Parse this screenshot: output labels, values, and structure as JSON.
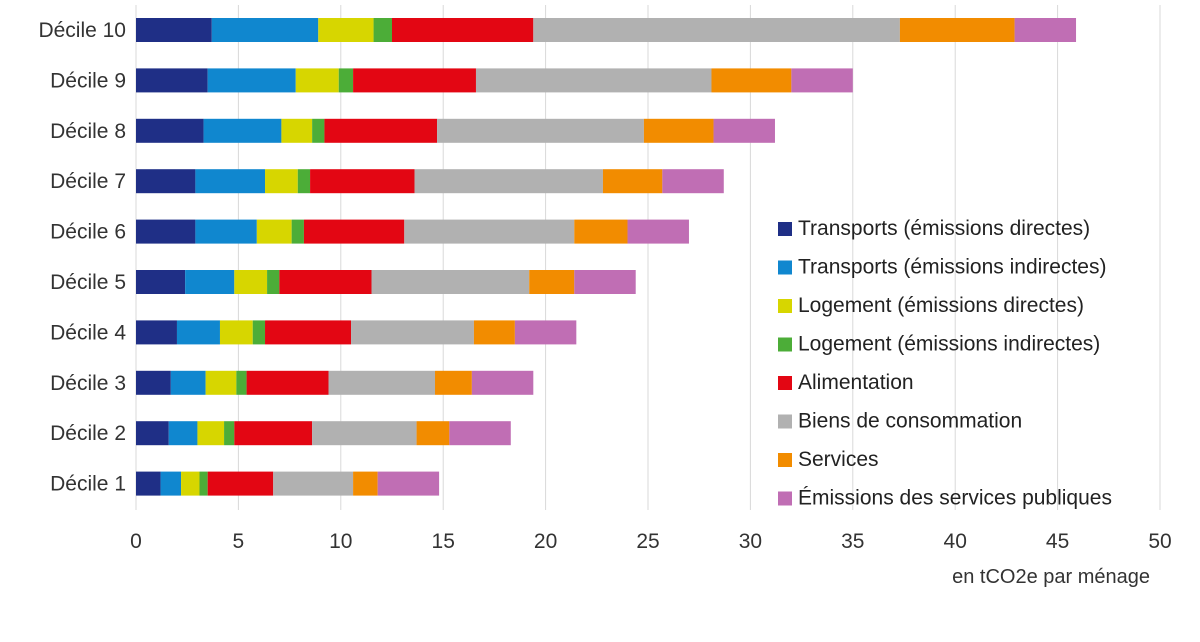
{
  "chart_data": {
    "type": "bar",
    "orientation": "horizontal",
    "stacked": true,
    "title": "",
    "xlabel": "en tCO2e par ménage",
    "ylabel": "",
    "xlim": [
      0,
      50
    ],
    "x_ticks": [
      0,
      5,
      10,
      15,
      20,
      25,
      30,
      35,
      40,
      45,
      50
    ],
    "grid": "vertical",
    "legend_position": "right",
    "categories": [
      "Décile 10",
      "Décile 9",
      "Décile 8",
      "Décile 7",
      "Décile 6",
      "Décile 5",
      "Décile 4",
      "Décile 3",
      "Décile 2",
      "Décile 1"
    ],
    "series": [
      {
        "name": "Transports (émissions directes)",
        "color": "#1f2f86",
        "values": [
          3.7,
          3.5,
          3.3,
          2.9,
          2.9,
          2.4,
          2.0,
          1.7,
          1.6,
          1.2
        ]
      },
      {
        "name": "Transports (émissions indirectes)",
        "color": "#1087cf",
        "values": [
          5.2,
          4.3,
          3.8,
          3.4,
          3.0,
          2.4,
          2.1,
          1.7,
          1.4,
          1.0
        ]
      },
      {
        "name": "Logement (émissions directes)",
        "color": "#d7d600",
        "values": [
          2.7,
          2.1,
          1.5,
          1.6,
          1.7,
          1.6,
          1.6,
          1.5,
          1.3,
          0.9
        ]
      },
      {
        "name": "Logement (émissions indirectes)",
        "color": "#4cad38",
        "values": [
          0.9,
          0.7,
          0.6,
          0.6,
          0.6,
          0.6,
          0.6,
          0.5,
          0.5,
          0.4
        ]
      },
      {
        "name": "Alimentation",
        "color": "#e30613",
        "values": [
          6.9,
          6.0,
          5.5,
          5.1,
          4.9,
          4.5,
          4.2,
          4.0,
          3.8,
          3.2
        ]
      },
      {
        "name": "Biens de consommation",
        "color": "#b1b1b1",
        "values": [
          17.9,
          11.5,
          10.1,
          9.2,
          8.3,
          7.7,
          6.0,
          5.2,
          5.1,
          3.9
        ]
      },
      {
        "name": "Services",
        "color": "#f28c00",
        "values": [
          5.6,
          3.9,
          3.4,
          2.9,
          2.6,
          2.2,
          2.0,
          1.8,
          1.6,
          1.2
        ]
      },
      {
        "name": "Émissions des services publiques",
        "color": "#c06eb4",
        "values": [
          3.0,
          3.0,
          3.0,
          3.0,
          3.0,
          3.0,
          3.0,
          3.0,
          3.0,
          3.0
        ]
      }
    ]
  }
}
